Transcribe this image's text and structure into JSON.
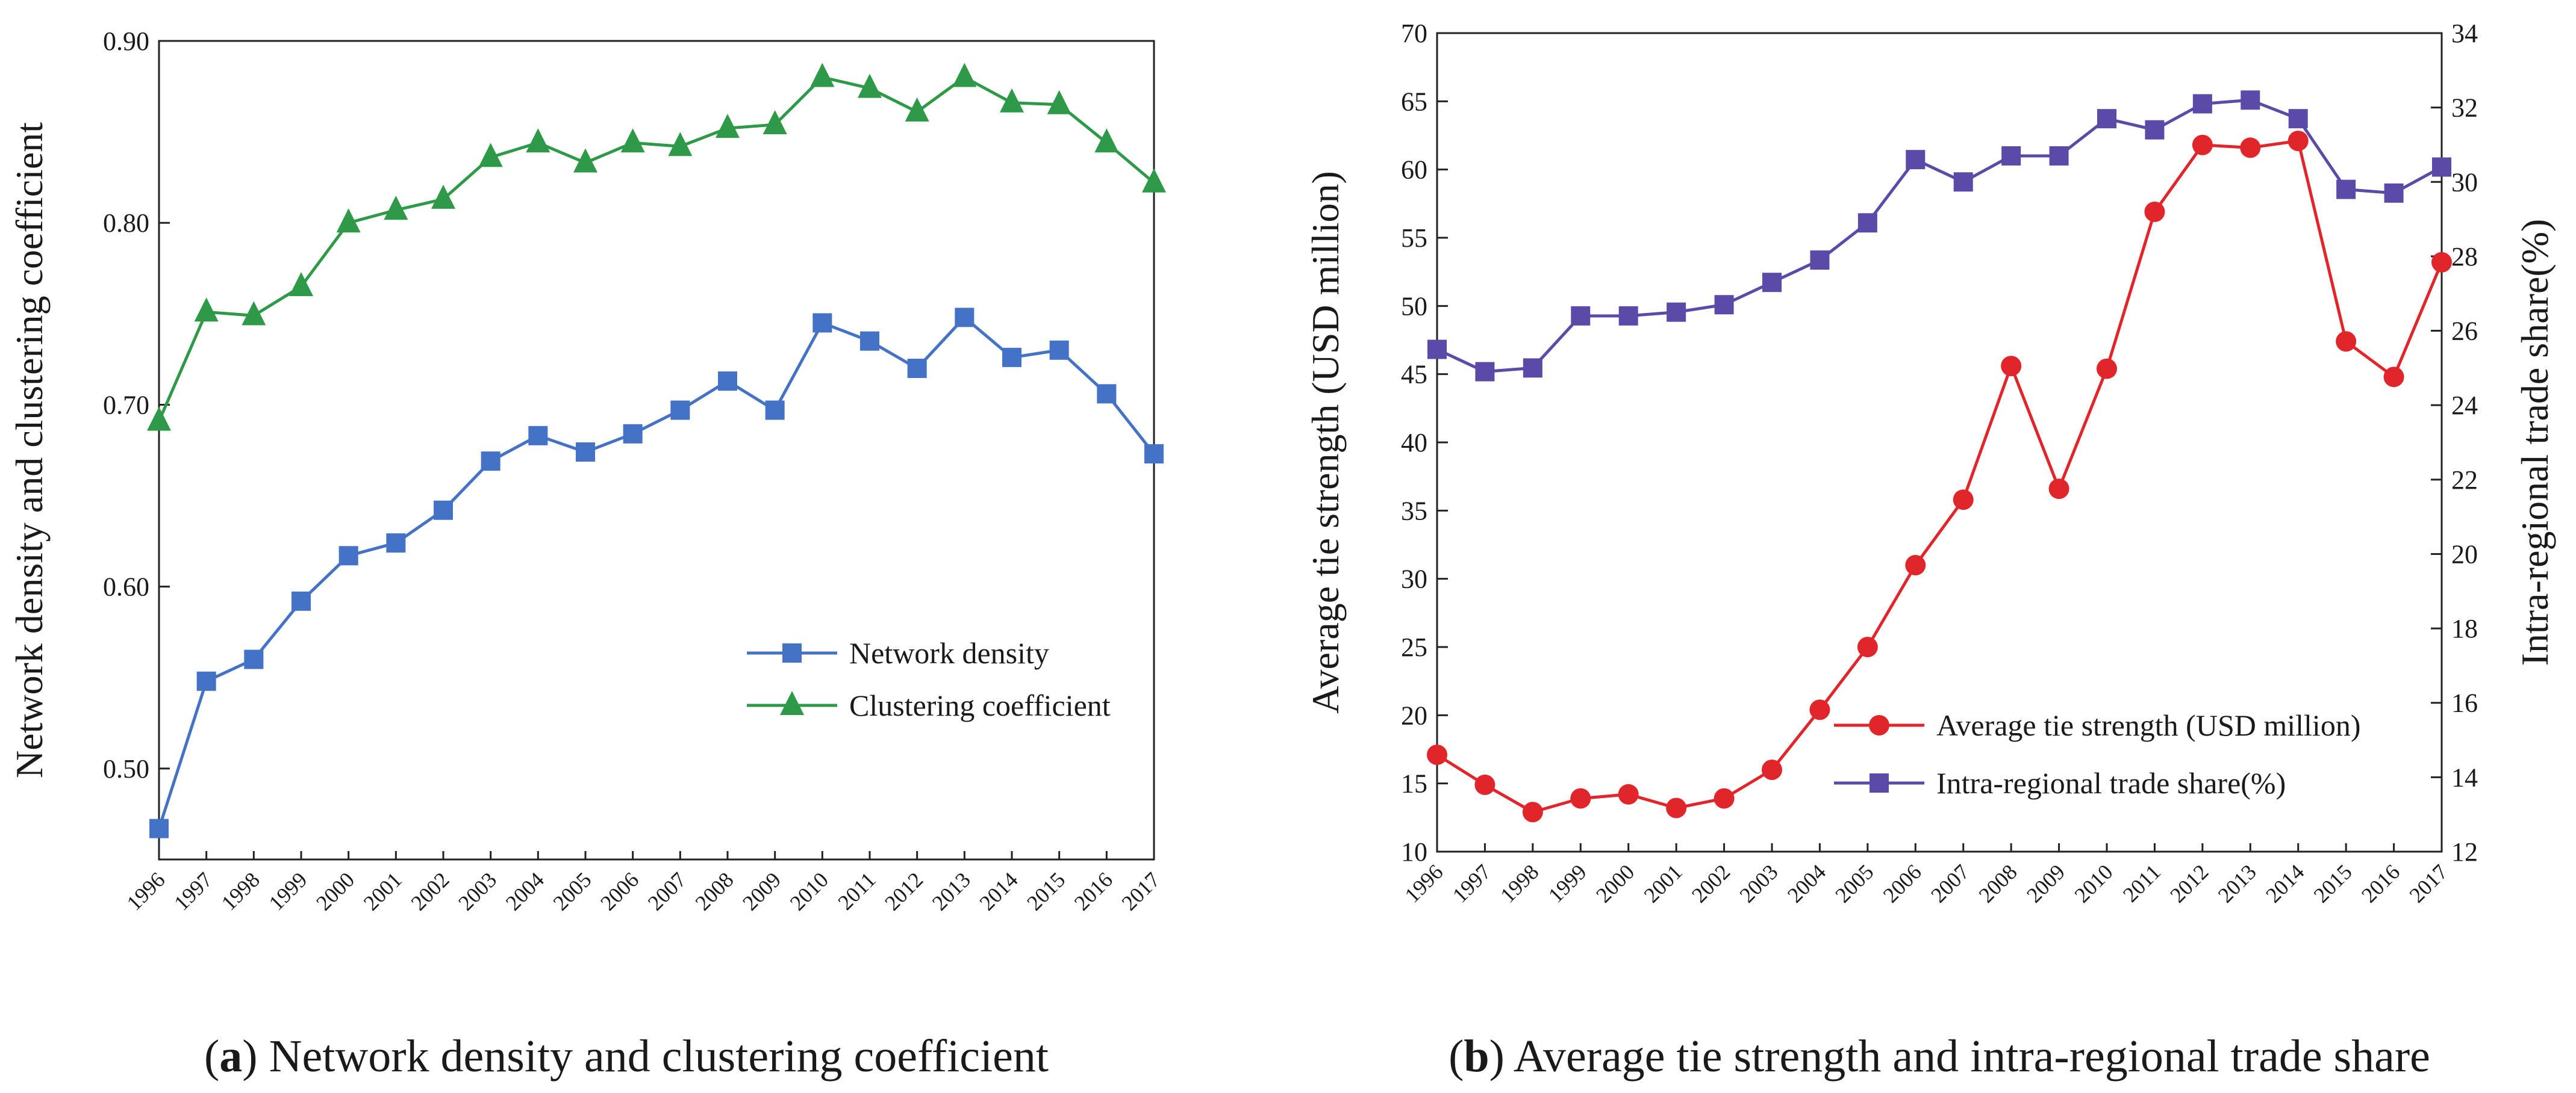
{
  "chart_data": [
    {
      "type": "line",
      "caption_letter": "a",
      "caption_text": " Network density and clustering coefficient",
      "ylabel": "Network density and clustering coefficient",
      "xlabel": "",
      "categories": [
        "1996",
        "1997",
        "1998",
        "1999",
        "2000",
        "2001",
        "2002",
        "2003",
        "2004",
        "2005",
        "2006",
        "2007",
        "2008",
        "2009",
        "2010",
        "2011",
        "2012",
        "2013",
        "2014",
        "2015",
        "2016",
        "2017"
      ],
      "ylim": [
        0.45,
        0.9
      ],
      "yticks": [
        0.5,
        0.6,
        0.7,
        0.8,
        0.9
      ],
      "ytick_labels": [
        "0.50",
        "0.60",
        "0.70",
        "0.80",
        "0.90"
      ],
      "legend_position": "center-right",
      "series": [
        {
          "name": "Network density",
          "color": "#4472c4",
          "marker": "square",
          "values": [
            0.467,
            0.548,
            0.56,
            0.592,
            0.617,
            0.624,
            0.642,
            0.669,
            0.683,
            0.674,
            0.684,
            0.697,
            0.713,
            0.697,
            0.745,
            0.735,
            0.72,
            0.748,
            0.726,
            0.73,
            0.706,
            0.673
          ]
        },
        {
          "name": "Clustering coefficient",
          "color": "#2e9a48",
          "marker": "triangle",
          "values": [
            0.691,
            0.751,
            0.749,
            0.765,
            0.8,
            0.807,
            0.813,
            0.836,
            0.844,
            0.833,
            0.844,
            0.842,
            0.852,
            0.854,
            0.88,
            0.874,
            0.861,
            0.88,
            0.866,
            0.865,
            0.844,
            0.822
          ]
        }
      ]
    },
    {
      "type": "line",
      "caption_letter": "b",
      "caption_text": " Average tie strength and intra-regional trade share",
      "ylabel": "Average tie strength (USD million)",
      "y2label": "Intra-regional trade share(%)",
      "xlabel": "",
      "categories": [
        "1996",
        "1997",
        "1998",
        "1999",
        "2000",
        "2001",
        "2002",
        "2003",
        "2004",
        "2005",
        "2006",
        "2007",
        "2008",
        "2009",
        "2010",
        "2011",
        "2012",
        "2013",
        "2014",
        "2015",
        "2016",
        "2017"
      ],
      "ylim": [
        10,
        70
      ],
      "yticks": [
        10,
        15,
        20,
        25,
        30,
        35,
        40,
        45,
        50,
        55,
        60,
        65,
        70
      ],
      "ytick_labels": [
        "10",
        "15",
        "20",
        "25",
        "30",
        "35",
        "40",
        "45",
        "50",
        "55",
        "60",
        "65",
        "70"
      ],
      "y2lim": [
        12,
        34
      ],
      "y2ticks": [
        12,
        14,
        16,
        18,
        20,
        22,
        24,
        26,
        28,
        30,
        32,
        34
      ],
      "y2tick_labels": [
        "12",
        "14",
        "16",
        "18",
        "20",
        "22",
        "24",
        "26",
        "28",
        "30",
        "32",
        "34"
      ],
      "legend_position": "lower-right",
      "series": [
        {
          "name": "Average tie strength (USD million)",
          "color": "#e0262b",
          "marker": "circle",
          "axis": "left",
          "values": [
            17.1,
            14.9,
            12.9,
            13.9,
            14.2,
            13.2,
            13.9,
            16.0,
            20.4,
            25.0,
            31.0,
            35.8,
            45.6,
            36.6,
            45.4,
            56.9,
            61.8,
            61.6,
            62.1,
            47.4,
            44.8,
            53.2
          ]
        },
        {
          "name": "Intra-regional trade share(%)",
          "color": "#5b4aa8",
          "marker": "square",
          "axis": "right",
          "values": [
            25.5,
            24.9,
            25.0,
            26.4,
            26.4,
            26.5,
            26.7,
            27.3,
            27.9,
            28.9,
            30.6,
            30.0,
            30.7,
            30.7,
            31.7,
            31.4,
            32.1,
            32.2,
            31.7,
            29.8,
            29.7,
            30.4
          ]
        }
      ]
    }
  ]
}
